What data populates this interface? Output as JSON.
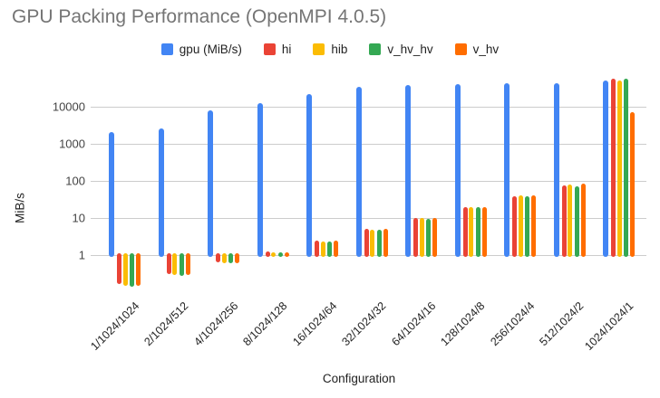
{
  "title": "GPU Packing Performance (OpenMPI 4.0.5)",
  "colors": {
    "background": "#ffffff",
    "title_text": "#757575",
    "axis_text": "#222222",
    "tick_text": "#444444",
    "gridline": "#cccccc"
  },
  "chart_data": {
    "type": "bar",
    "title": "GPU Packing Performance (OpenMPI 4.0.5)",
    "xlabel": "Configuration",
    "ylabel": "MiB/s",
    "y_scale": "log",
    "ylim": [
      0.1,
      100000
    ],
    "y_ticks": [
      1,
      10,
      100,
      1000,
      10000
    ],
    "baseline": 1,
    "grid": true,
    "legend_position": "top",
    "x_tick_rotation": 45,
    "categories": [
      "1/1024/1024",
      "2/1024/512",
      "4/1024/256",
      "8/1024/128",
      "16/1024/64",
      "32/1024/32",
      "64/1024/16",
      "128/1024/8",
      "256/1024/4",
      "512/1024/2",
      "1024/1024/1"
    ],
    "series": [
      {
        "name": "gpu (MiB/s)",
        "color": "#4285F4",
        "values": [
          2100,
          2600,
          8000,
          12500,
          22000,
          34000,
          38000,
          41000,
          44000,
          43000,
          50000
        ]
      },
      {
        "name": "hi",
        "color": "#EA4335",
        "values": [
          0.17,
          0.31,
          0.65,
          1.25,
          2.5,
          5,
          10,
          20,
          38,
          77,
          58000
        ]
      },
      {
        "name": "hib",
        "color": "#FBBC04",
        "values": [
          0.15,
          0.29,
          0.62,
          1.2,
          2.3,
          4.8,
          10,
          20,
          40,
          81,
          52000
        ]
      },
      {
        "name": "v_hv_hv",
        "color": "#34A853",
        "values": [
          0.14,
          0.28,
          0.62,
          1.2,
          2.3,
          4.8,
          9.5,
          20,
          38,
          70,
          57000
        ]
      },
      {
        "name": "v_hv",
        "color": "#FF6D00",
        "values": [
          0.15,
          0.29,
          0.62,
          1.2,
          2.4,
          5,
          10,
          20,
          40,
          84,
          7000
        ]
      }
    ]
  }
}
